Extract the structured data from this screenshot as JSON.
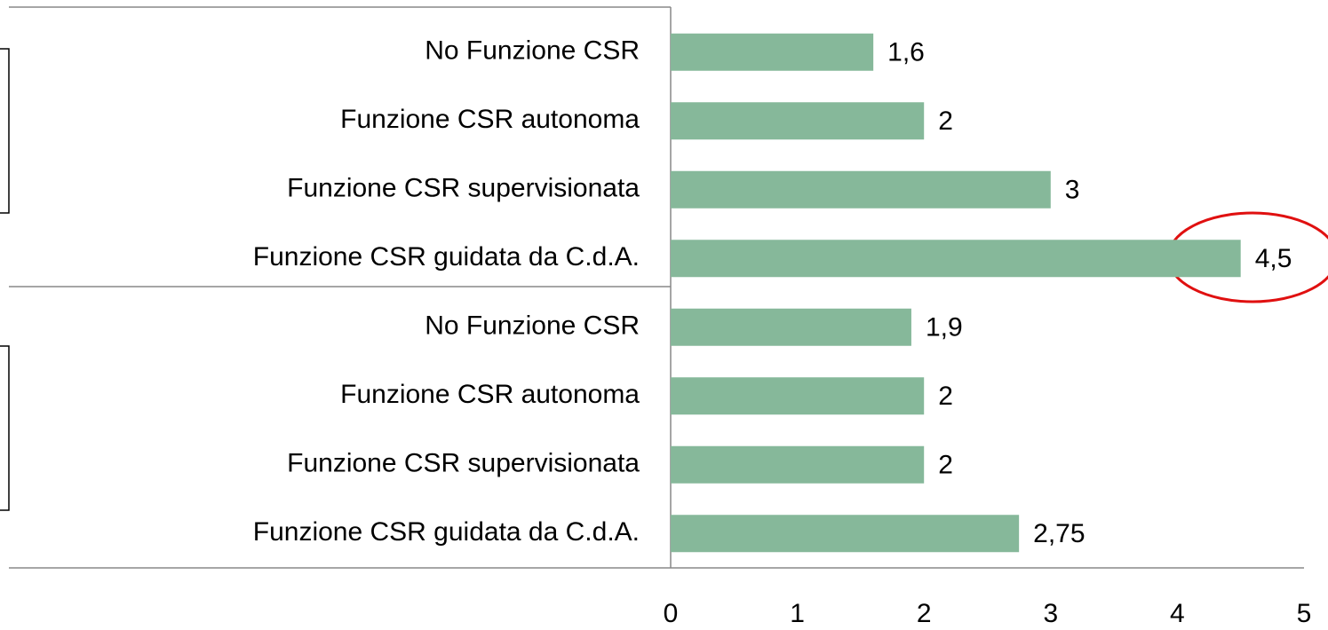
{
  "chart_data": {
    "type": "barh",
    "categories": [
      "No Funzione CSR",
      "Funzione CSR autonoma",
      "Funzione CSR supervisionata",
      "Funzione CSR guidata da C.d.A.",
      "No Funzione CSR",
      "Funzione CSR autonoma",
      "Funzione CSR supervisionata",
      "Funzione CSR guidata da C.d.A."
    ],
    "values": [
      1.6,
      2,
      3,
      4.5,
      1.9,
      2,
      2,
      2.75
    ],
    "value_labels": [
      "1,6",
      "2",
      "3",
      "4,5",
      "1,9",
      "2",
      "2",
      "2,75"
    ],
    "color": "#86b89a",
    "xlim": [
      0,
      5
    ],
    "xticks": [
      0,
      1,
      2,
      3,
      4,
      5
    ],
    "grid": false
  }
}
